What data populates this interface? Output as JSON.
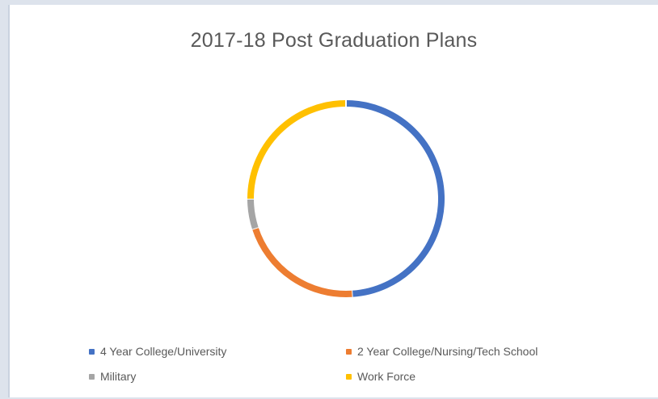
{
  "chart_data": {
    "type": "pie",
    "variant": "donut",
    "title": "2017-18 Post Graduation Plans",
    "categories": [
      "4 Year College/University",
      "2 Year College/Nursing/Tech School",
      "Military",
      "Work Force"
    ],
    "series": [
      {
        "values": [
          49,
          21,
          5,
          25
        ]
      }
    ],
    "colors": [
      "#4472C4",
      "#ED7D31",
      "#A5A5A5",
      "#FFC000"
    ],
    "legend": "bottom"
  }
}
